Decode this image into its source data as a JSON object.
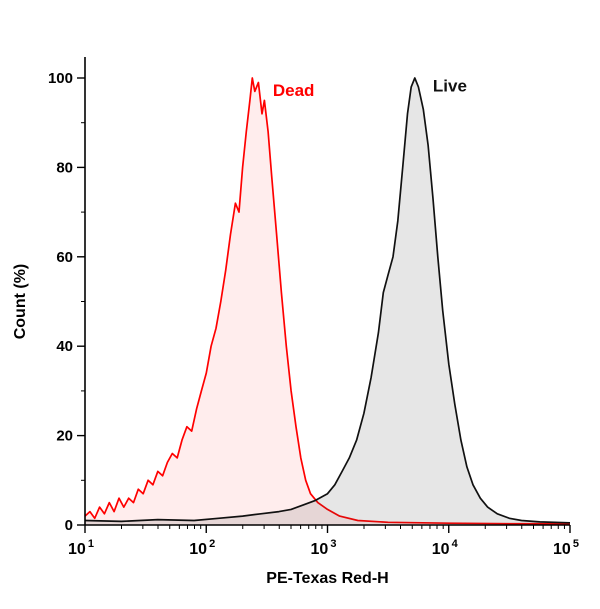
{
  "figure": {
    "background": "#ffffff"
  },
  "chart_data": {
    "type": "area",
    "subtype": "flow-cytometry-histogram",
    "title": "",
    "xlabel": "PE-Texas Red-H",
    "ylabel": "Count  (%)",
    "x_scale": "log10",
    "x_range": [
      10,
      100000
    ],
    "y_range": [
      0,
      100
    ],
    "x_major_ticks": [
      {
        "log": 1,
        "base": "10",
        "exp": "1"
      },
      {
        "log": 2,
        "base": "10",
        "exp": "2"
      },
      {
        "log": 3,
        "base": "10",
        "exp": "3"
      },
      {
        "log": 4,
        "base": "10",
        "exp": "4"
      },
      {
        "log": 5,
        "base": "10",
        "exp": "5"
      }
    ],
    "y_major_ticks": [
      0,
      20,
      40,
      60,
      80,
      100
    ],
    "y_minor_ticks": [
      10,
      30,
      50,
      70,
      90
    ],
    "grid": false,
    "legend_position": "inline-annotations",
    "axis_color": "#000000",
    "series": [
      {
        "name": "Dead",
        "line_color": "#ff0000",
        "fill_color": "rgba(255,0,0,0.07)",
        "annotation": {
          "text": "Dead",
          "log_x": 2.5,
          "y": 96
        },
        "points": [
          [
            1.0,
            2
          ],
          [
            1.04,
            3
          ],
          [
            1.08,
            1.5
          ],
          [
            1.12,
            4
          ],
          [
            1.16,
            2.5
          ],
          [
            1.2,
            5
          ],
          [
            1.24,
            3
          ],
          [
            1.28,
            6
          ],
          [
            1.32,
            4
          ],
          [
            1.36,
            6
          ],
          [
            1.4,
            5
          ],
          [
            1.44,
            8
          ],
          [
            1.48,
            7
          ],
          [
            1.52,
            10
          ],
          [
            1.56,
            9
          ],
          [
            1.6,
            12
          ],
          [
            1.64,
            11
          ],
          [
            1.68,
            14
          ],
          [
            1.72,
            16
          ],
          [
            1.76,
            15
          ],
          [
            1.8,
            19
          ],
          [
            1.84,
            22
          ],
          [
            1.88,
            21
          ],
          [
            1.92,
            26
          ],
          [
            1.96,
            30
          ],
          [
            2.0,
            34
          ],
          [
            2.04,
            40
          ],
          [
            2.08,
            44
          ],
          [
            2.12,
            50
          ],
          [
            2.16,
            57
          ],
          [
            2.2,
            65
          ],
          [
            2.24,
            72
          ],
          [
            2.27,
            70
          ],
          [
            2.3,
            80
          ],
          [
            2.33,
            88
          ],
          [
            2.36,
            95
          ],
          [
            2.38,
            100
          ],
          [
            2.4,
            97
          ],
          [
            2.43,
            99
          ],
          [
            2.46,
            92
          ],
          [
            2.48,
            95
          ],
          [
            2.51,
            88
          ],
          [
            2.54,
            78
          ],
          [
            2.58,
            65
          ],
          [
            2.62,
            52
          ],
          [
            2.66,
            40
          ],
          [
            2.7,
            30
          ],
          [
            2.74,
            22
          ],
          [
            2.78,
            15
          ],
          [
            2.82,
            10
          ],
          [
            2.86,
            7
          ],
          [
            2.92,
            5
          ],
          [
            3.0,
            3.5
          ],
          [
            3.1,
            2
          ],
          [
            3.25,
            1
          ],
          [
            3.5,
            0.6
          ],
          [
            4.0,
            0.4
          ],
          [
            4.5,
            0.3
          ],
          [
            5.0,
            0.3
          ]
        ]
      },
      {
        "name": "Live",
        "line_color": "#111111",
        "fill_color": "rgba(60,60,60,0.13)",
        "annotation": {
          "text": "Live",
          "log_x": 3.82,
          "y": 97
        },
        "points": [
          [
            1.0,
            1
          ],
          [
            1.3,
            0.8
          ],
          [
            1.6,
            1.2
          ],
          [
            1.9,
            1
          ],
          [
            2.1,
            1.5
          ],
          [
            2.3,
            2
          ],
          [
            2.45,
            2.5
          ],
          [
            2.6,
            3
          ],
          [
            2.7,
            3.5
          ],
          [
            2.8,
            4.5
          ],
          [
            2.9,
            5.5
          ],
          [
            3.0,
            7
          ],
          [
            3.06,
            9
          ],
          [
            3.12,
            12
          ],
          [
            3.18,
            15
          ],
          [
            3.24,
            19
          ],
          [
            3.3,
            25
          ],
          [
            3.36,
            33
          ],
          [
            3.42,
            43
          ],
          [
            3.46,
            52
          ],
          [
            3.5,
            56
          ],
          [
            3.54,
            60
          ],
          [
            3.58,
            68
          ],
          [
            3.62,
            80
          ],
          [
            3.66,
            92
          ],
          [
            3.69,
            98
          ],
          [
            3.72,
            100
          ],
          [
            3.75,
            98
          ],
          [
            3.79,
            93
          ],
          [
            3.83,
            85
          ],
          [
            3.87,
            73
          ],
          [
            3.91,
            60
          ],
          [
            3.95,
            48
          ],
          [
            4.0,
            36
          ],
          [
            4.05,
            27
          ],
          [
            4.1,
            19
          ],
          [
            4.15,
            13
          ],
          [
            4.2,
            9
          ],
          [
            4.26,
            6
          ],
          [
            4.32,
            4
          ],
          [
            4.4,
            2.5
          ],
          [
            4.5,
            1.5
          ],
          [
            4.6,
            1
          ],
          [
            4.75,
            0.7
          ],
          [
            5.0,
            0.5
          ]
        ]
      }
    ]
  }
}
